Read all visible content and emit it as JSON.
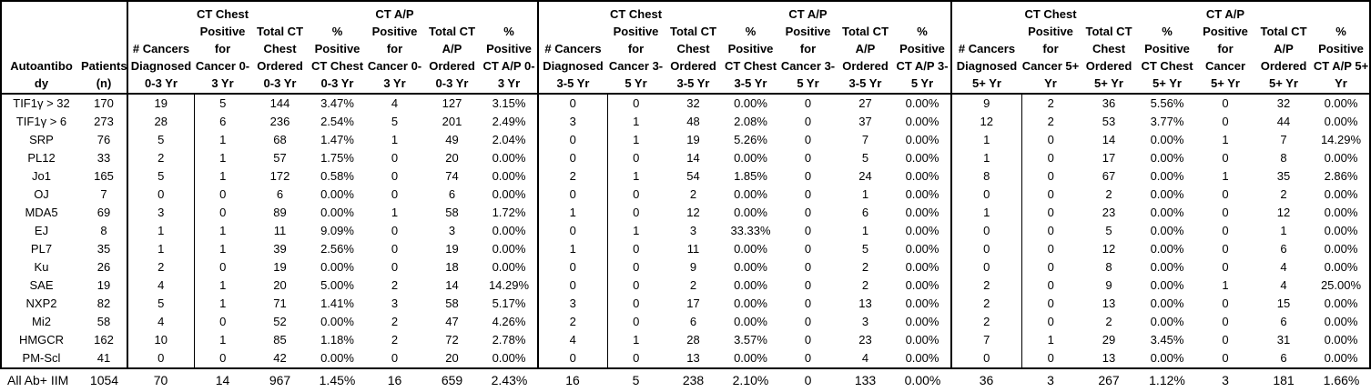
{
  "colors": {
    "border": "#000000",
    "text": "#000000",
    "background": "#ffffff"
  },
  "chart_data": {
    "type": "table",
    "columns": [
      "Autoantibo\ndy",
      "Patients\n(n)",
      "# Cancers\nDiagnosed\n0-3 Yr",
      "CT Chest\nPositive\nfor\nCancer 0-\n3 Yr",
      "Total CT\nChest\nOrdered\n0-3 Yr",
      "%\nPositive\nCT Chest\n0-3 Yr",
      "CT A/P\nPositive\nfor\nCancer 0-\n3 Yr",
      "Total CT\nA/P\nOrdered\n0-3 Yr",
      "%\nPositive\nCT A/P 0-\n3 Yr",
      "# Cancers\nDiagnosed\n3-5 Yr",
      "CT Chest\nPositive\nfor\nCancer 3-\n5 Yr",
      "Total CT\nChest\nOrdered\n3-5 Yr",
      "%\nPositive\nCT Chest\n3-5 Yr",
      "CT A/P\nPositive\nfor\nCancer 3-\n5 Yr",
      "Total CT\nA/P\nOrdered\n3-5 Yr",
      "%\nPositive\nCT A/P 3-\n5 Yr",
      "# Cancers\nDiagnosed\n5+ Yr",
      "CT Chest\nPositive\nfor\nCancer 5+\nYr",
      "Total CT\nChest\nOrdered\n5+ Yr",
      "%\nPositive\nCT Chest\n5+ Yr",
      "CT A/P\nPositive\nfor\nCancer\n5+ Yr",
      "Total CT\nA/P\nOrdered\n5+ Yr",
      "%\nPositive\nCT A/P 5+\nYr"
    ],
    "rows": [
      {
        "cells": [
          "TIF1γ > 32",
          "170",
          "19",
          "5",
          "144",
          "3.47%",
          "4",
          "127",
          "3.15%",
          "0",
          "0",
          "32",
          "0.00%",
          "0",
          "27",
          "0.00%",
          "9",
          "2",
          "36",
          "5.56%",
          "0",
          "32",
          "0.00%"
        ]
      },
      {
        "cells": [
          "TIF1γ > 6",
          "273",
          "28",
          "6",
          "236",
          "2.54%",
          "5",
          "201",
          "2.49%",
          "3",
          "1",
          "48",
          "2.08%",
          "0",
          "37",
          "0.00%",
          "12",
          "2",
          "53",
          "3.77%",
          "0",
          "44",
          "0.00%"
        ]
      },
      {
        "cells": [
          "SRP",
          "76",
          "5",
          "1",
          "68",
          "1.47%",
          "1",
          "49",
          "2.04%",
          "0",
          "1",
          "19",
          "5.26%",
          "0",
          "7",
          "0.00%",
          "1",
          "0",
          "14",
          "0.00%",
          "1",
          "7",
          "14.29%"
        ]
      },
      {
        "cells": [
          "PL12",
          "33",
          "2",
          "1",
          "57",
          "1.75%",
          "0",
          "20",
          "0.00%",
          "0",
          "0",
          "14",
          "0.00%",
          "0",
          "5",
          "0.00%",
          "1",
          "0",
          "17",
          "0.00%",
          "0",
          "8",
          "0.00%"
        ]
      },
      {
        "cells": [
          "Jo1",
          "165",
          "5",
          "1",
          "172",
          "0.58%",
          "0",
          "74",
          "0.00%",
          "2",
          "1",
          "54",
          "1.85%",
          "0",
          "24",
          "0.00%",
          "8",
          "0",
          "67",
          "0.00%",
          "1",
          "35",
          "2.86%"
        ]
      },
      {
        "cells": [
          "OJ",
          "7",
          "0",
          "0",
          "6",
          "0.00%",
          "0",
          "6",
          "0.00%",
          "0",
          "0",
          "2",
          "0.00%",
          "0",
          "1",
          "0.00%",
          "0",
          "0",
          "2",
          "0.00%",
          "0",
          "2",
          "0.00%"
        ]
      },
      {
        "cells": [
          "MDA5",
          "69",
          "3",
          "0",
          "89",
          "0.00%",
          "1",
          "58",
          "1.72%",
          "1",
          "0",
          "12",
          "0.00%",
          "0",
          "6",
          "0.00%",
          "1",
          "0",
          "23",
          "0.00%",
          "0",
          "12",
          "0.00%"
        ]
      },
      {
        "cells": [
          "EJ",
          "8",
          "1",
          "1",
          "11",
          "9.09%",
          "0",
          "3",
          "0.00%",
          "0",
          "1",
          "3",
          "33.33%",
          "0",
          "1",
          "0.00%",
          "0",
          "0",
          "5",
          "0.00%",
          "0",
          "1",
          "0.00%"
        ]
      },
      {
        "cells": [
          "PL7",
          "35",
          "1",
          "1",
          "39",
          "2.56%",
          "0",
          "19",
          "0.00%",
          "1",
          "0",
          "11",
          "0.00%",
          "0",
          "5",
          "0.00%",
          "0",
          "0",
          "12",
          "0.00%",
          "0",
          "6",
          "0.00%"
        ]
      },
      {
        "cells": [
          "Ku",
          "26",
          "2",
          "0",
          "19",
          "0.00%",
          "0",
          "18",
          "0.00%",
          "0",
          "0",
          "9",
          "0.00%",
          "0",
          "2",
          "0.00%",
          "0",
          "0",
          "8",
          "0.00%",
          "0",
          "4",
          "0.00%"
        ]
      },
      {
        "cells": [
          "SAE",
          "19",
          "4",
          "1",
          "20",
          "5.00%",
          "2",
          "14",
          "14.29%",
          "0",
          "0",
          "2",
          "0.00%",
          "0",
          "2",
          "0.00%",
          "2",
          "0",
          "9",
          "0.00%",
          "1",
          "4",
          "25.00%"
        ]
      },
      {
        "cells": [
          "NXP2",
          "82",
          "5",
          "1",
          "71",
          "1.41%",
          "3",
          "58",
          "5.17%",
          "3",
          "0",
          "17",
          "0.00%",
          "0",
          "13",
          "0.00%",
          "2",
          "0",
          "13",
          "0.00%",
          "0",
          "15",
          "0.00%"
        ]
      },
      {
        "cells": [
          "Mi2",
          "58",
          "4",
          "0",
          "52",
          "0.00%",
          "2",
          "47",
          "4.26%",
          "2",
          "0",
          "6",
          "0.00%",
          "0",
          "3",
          "0.00%",
          "2",
          "0",
          "2",
          "0.00%",
          "0",
          "6",
          "0.00%"
        ]
      },
      {
        "cells": [
          "HMGCR",
          "162",
          "10",
          "1",
          "85",
          "1.18%",
          "2",
          "72",
          "2.78%",
          "4",
          "1",
          "28",
          "3.57%",
          "0",
          "23",
          "0.00%",
          "7",
          "1",
          "29",
          "3.45%",
          "0",
          "31",
          "0.00%"
        ]
      },
      {
        "cells": [
          "PM-Scl",
          "41",
          "0",
          "0",
          "42",
          "0.00%",
          "0",
          "20",
          "0.00%",
          "0",
          "0",
          "13",
          "0.00%",
          "0",
          "4",
          "0.00%",
          "0",
          "0",
          "13",
          "0.00%",
          "0",
          "6",
          "0.00%"
        ]
      }
    ],
    "total_row": {
      "cells": [
        "All Ab+ IIM",
        "1054",
        "70",
        "14",
        "967",
        "1.45%",
        "16",
        "659",
        "2.43%",
        "16",
        "5",
        "238",
        "2.10%",
        "0",
        "133",
        "0.00%",
        "36",
        "3",
        "267",
        "1.12%",
        "3",
        "181",
        "1.66%"
      ]
    }
  }
}
